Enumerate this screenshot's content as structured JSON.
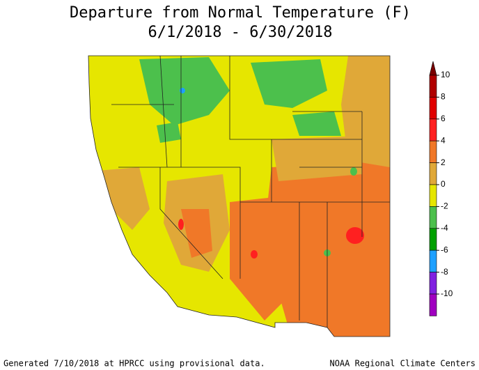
{
  "title": {
    "line1": "Departure from Normal Temperature (F)",
    "line2": "6/1/2018 - 6/30/2018"
  },
  "legend": {
    "ticks": [
      10,
      8,
      6,
      4,
      2,
      0,
      -2,
      -4,
      -6,
      -8,
      -10
    ],
    "colors": [
      "#b00000",
      "#e00000",
      "#ff2020",
      "#f07828",
      "#e0a838",
      "#e6e600",
      "#4cc04c",
      "#00a000",
      "#1ea0ff",
      "#8020e0",
      "#a000c0"
    ],
    "over_color": "#7a0000",
    "under_color": "#ff00ff"
  },
  "footer": {
    "left": "Generated 7/10/2018 at HPRCC using provisional data.",
    "right": "NOAA Regional Climate Centers"
  }
}
